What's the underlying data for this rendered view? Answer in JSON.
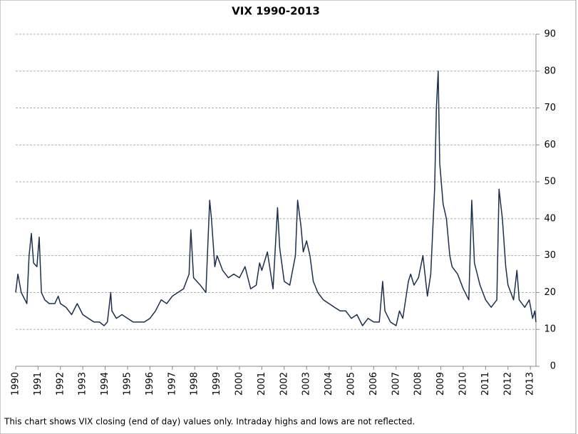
{
  "chart_data": {
    "type": "line",
    "title": "VIX 1990-2013",
    "note": "This chart shows VIX closing (end of day) values only. Intraday highs and lows are not reflected.",
    "color": "#1c2f4e",
    "grid": true,
    "y_axis_side": "right",
    "xlim": [
      1990,
      2013.25
    ],
    "ylim": [
      0,
      90
    ],
    "xticks": [
      1990,
      1991,
      1992,
      1993,
      1994,
      1995,
      1996,
      1997,
      1998,
      1999,
      2000,
      2001,
      2002,
      2003,
      2004,
      2005,
      2006,
      2007,
      2008,
      2009,
      2010,
      2011,
      2012,
      2013
    ],
    "yticks": [
      0,
      10,
      20,
      30,
      40,
      50,
      60,
      70,
      80,
      90
    ],
    "x": [
      1990.0,
      1990.1,
      1990.25,
      1990.5,
      1990.6,
      1990.7,
      1990.8,
      1990.95,
      1991.05,
      1991.15,
      1991.3,
      1991.5,
      1991.75,
      1991.9,
      1992.0,
      1992.25,
      1992.5,
      1992.75,
      1993.0,
      1993.25,
      1993.5,
      1993.75,
      1993.95,
      1994.1,
      1994.25,
      1994.3,
      1994.5,
      1994.75,
      1995.0,
      1995.25,
      1995.5,
      1995.75,
      1996.0,
      1996.25,
      1996.5,
      1996.75,
      1997.0,
      1997.25,
      1997.5,
      1997.75,
      1997.83,
      1997.95,
      1998.25,
      1998.5,
      1998.67,
      1998.75,
      1998.9,
      1999.0,
      1999.25,
      1999.5,
      1999.75,
      2000.0,
      2000.25,
      2000.5,
      2000.75,
      2000.9,
      2001.0,
      2001.25,
      2001.5,
      2001.7,
      2001.8,
      2002.0,
      2002.25,
      2002.5,
      2002.6,
      2002.75,
      2002.85,
      2003.0,
      2003.15,
      2003.3,
      2003.5,
      2003.75,
      2004.0,
      2004.25,
      2004.5,
      2004.75,
      2005.0,
      2005.25,
      2005.5,
      2005.75,
      2006.0,
      2006.25,
      2006.4,
      2006.5,
      2006.75,
      2007.0,
      2007.15,
      2007.3,
      2007.55,
      2007.65,
      2007.8,
      2007.9,
      2008.0,
      2008.2,
      2008.4,
      2008.55,
      2008.72,
      2008.8,
      2008.88,
      2008.95,
      2009.1,
      2009.25,
      2009.4,
      2009.5,
      2009.75,
      2010.0,
      2010.25,
      2010.38,
      2010.5,
      2010.75,
      2011.0,
      2011.25,
      2011.5,
      2011.6,
      2011.75,
      2011.9,
      2012.0,
      2012.25,
      2012.4,
      2012.5,
      2012.75,
      2012.95,
      2013.1,
      2013.2,
      2013.25
    ],
    "values": [
      20,
      25,
      20,
      17,
      30,
      36,
      28,
      27,
      35,
      20,
      18,
      17,
      17,
      19,
      17,
      16,
      14,
      17,
      14,
      13,
      12,
      12,
      11,
      12,
      20,
      15,
      13,
      14,
      13,
      12,
      12,
      12,
      13,
      15,
      18,
      17,
      19,
      20,
      21,
      25,
      37,
      24,
      22,
      20,
      45,
      40,
      27,
      30,
      26,
      24,
      25,
      24,
      27,
      21,
      22,
      28,
      26,
      31,
      21,
      43,
      32,
      23,
      22,
      30,
      45,
      38,
      31,
      34,
      30,
      23,
      20,
      18,
      17,
      16,
      15,
      15,
      13,
      14,
      11,
      13,
      12,
      12,
      23,
      15,
      12,
      11,
      15,
      13,
      23,
      25,
      22,
      23,
      24,
      30,
      19,
      25,
      48,
      70,
      80,
      55,
      44,
      40,
      30,
      27,
      25,
      21,
      18,
      45,
      28,
      22,
      18,
      16,
      18,
      48,
      40,
      27,
      22,
      18,
      26,
      18,
      16,
      18,
      13,
      15,
      12
    ]
  }
}
